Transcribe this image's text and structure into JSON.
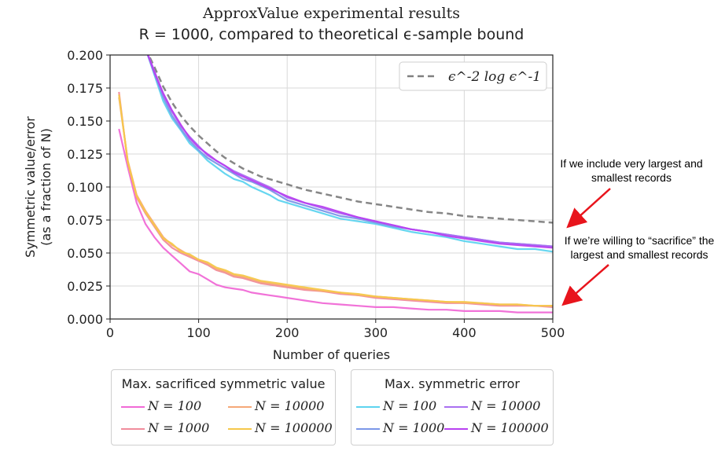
{
  "title": {
    "line1": "ApproxValue experimental results",
    "line2": "R = 1000, compared to theoretical ϵ-sample bound"
  },
  "annotations": {
    "upper": "If we include very largest and smallest records",
    "lower": "If we’re willing to “sacrifice” the largest and smallest records"
  },
  "legends": {
    "sacrificed": {
      "title": "Max. sacrificed symmetric value",
      "items": [
        "N = 100",
        "N = 10000",
        "N = 1000",
        "N = 100000"
      ]
    },
    "error": {
      "title": "Max. symmetric error",
      "items": [
        "N = 100",
        "N = 10000",
        "N = 1000",
        "N = 100000"
      ]
    }
  },
  "chart_data": {
    "type": "line",
    "xlabel": "Number of queries",
    "ylabel": "Symmetric value/error (as a fraction of N)",
    "xlim": [
      0,
      500
    ],
    "ylim": [
      0,
      0.2
    ],
    "xticks": [
      "0",
      "100",
      "200",
      "300",
      "400",
      "500"
    ],
    "yticks": [
      "0.000",
      "0.025",
      "0.050",
      "0.075",
      "0.100",
      "0.125",
      "0.150",
      "0.175",
      "0.200"
    ],
    "grid": true,
    "inline_legend": {
      "label": "ϵ^-2 log ϵ^-1",
      "position": "top-right"
    },
    "x": [
      10,
      20,
      30,
      40,
      50,
      60,
      70,
      80,
      90,
      100,
      110,
      120,
      130,
      140,
      150,
      160,
      170,
      180,
      190,
      200,
      220,
      240,
      260,
      280,
      300,
      320,
      340,
      360,
      380,
      400,
      420,
      440,
      460,
      480,
      500
    ],
    "series": [
      {
        "name": "ϵ^-2 log ϵ^-1",
        "group": "bound",
        "color": "#808080",
        "dashed": true,
        "values": [
          null,
          null,
          null,
          0.205,
          0.191,
          0.176,
          0.164,
          0.154,
          0.146,
          0.139,
          0.133,
          0.127,
          0.122,
          0.118,
          0.114,
          0.111,
          0.108,
          0.106,
          0.104,
          0.102,
          0.098,
          0.095,
          0.092,
          0.089,
          0.087,
          0.085,
          0.083,
          0.081,
          0.08,
          0.078,
          0.077,
          0.076,
          0.075,
          0.074,
          0.073
        ]
      },
      {
        "name": "N = 100",
        "group": "error",
        "color": "#5ed4ef",
        "values": [
          null,
          null,
          null,
          0.205,
          0.185,
          0.165,
          0.152,
          0.143,
          0.133,
          0.127,
          0.12,
          0.115,
          0.11,
          0.106,
          0.104,
          0.1,
          0.097,
          0.094,
          0.09,
          0.088,
          0.084,
          0.08,
          0.076,
          0.074,
          0.072,
          0.069,
          0.066,
          0.064,
          0.062,
          0.059,
          0.057,
          0.055,
          0.053,
          0.053,
          0.051
        ]
      },
      {
        "name": "N = 1000",
        "group": "error",
        "color": "#7c97e8",
        "values": [
          null,
          null,
          null,
          0.205,
          0.186,
          0.168,
          0.154,
          0.144,
          0.135,
          0.128,
          0.122,
          0.118,
          0.114,
          0.11,
          0.106,
          0.104,
          0.101,
          0.098,
          0.094,
          0.09,
          0.086,
          0.082,
          0.078,
          0.076,
          0.073,
          0.07,
          0.068,
          0.066,
          0.064,
          0.062,
          0.06,
          0.058,
          0.057,
          0.056,
          0.055
        ]
      },
      {
        "name": "N = 10000",
        "group": "error",
        "color": "#a96ff0",
        "values": [
          null,
          null,
          null,
          0.205,
          0.188,
          0.17,
          0.157,
          0.146,
          0.138,
          0.131,
          0.124,
          0.12,
          0.116,
          0.112,
          0.109,
          0.106,
          0.103,
          0.1,
          0.096,
          0.092,
          0.088,
          0.084,
          0.08,
          0.077,
          0.074,
          0.071,
          0.068,
          0.066,
          0.064,
          0.062,
          0.06,
          0.058,
          0.057,
          0.056,
          0.055
        ]
      },
      {
        "name": "N = 100000",
        "group": "error",
        "color": "#b840f0",
        "values": [
          null,
          null,
          null,
          0.205,
          0.187,
          0.171,
          0.158,
          0.147,
          0.137,
          0.13,
          0.125,
          0.12,
          0.116,
          0.111,
          0.108,
          0.105,
          0.102,
          0.099,
          0.096,
          0.093,
          0.088,
          0.085,
          0.081,
          0.077,
          0.074,
          0.071,
          0.068,
          0.066,
          0.063,
          0.061,
          0.059,
          0.057,
          0.056,
          0.055,
          0.054
        ]
      },
      {
        "name": "N = 100",
        "group": "sacrificed",
        "color": "#f06ad6",
        "values": [
          0.144,
          0.115,
          0.088,
          0.072,
          0.062,
          0.054,
          0.048,
          0.042,
          0.036,
          0.034,
          0.03,
          0.026,
          0.024,
          0.023,
          0.022,
          0.02,
          0.019,
          0.018,
          0.017,
          0.016,
          0.014,
          0.012,
          0.011,
          0.01,
          0.009,
          0.009,
          0.008,
          0.007,
          0.007,
          0.006,
          0.006,
          0.006,
          0.005,
          0.005,
          0.005
        ]
      },
      {
        "name": "N = 1000",
        "group": "sacrificed",
        "color": "#f08c9c",
        "values": [
          0.172,
          0.118,
          0.092,
          0.08,
          0.07,
          0.06,
          0.054,
          0.05,
          0.047,
          0.044,
          0.041,
          0.037,
          0.035,
          0.032,
          0.031,
          0.029,
          0.027,
          0.026,
          0.025,
          0.024,
          0.022,
          0.021,
          0.019,
          0.018,
          0.016,
          0.015,
          0.014,
          0.013,
          0.012,
          0.012,
          0.011,
          0.01,
          0.01,
          0.01,
          0.009
        ]
      },
      {
        "name": "N = 10000",
        "group": "sacrificed",
        "color": "#f5a878",
        "values": [
          0.168,
          0.12,
          0.094,
          0.082,
          0.072,
          0.062,
          0.056,
          0.052,
          0.048,
          0.045,
          0.042,
          0.038,
          0.036,
          0.033,
          0.032,
          0.03,
          0.028,
          0.027,
          0.026,
          0.025,
          0.023,
          0.021,
          0.02,
          0.018,
          0.017,
          0.016,
          0.015,
          0.014,
          0.013,
          0.012,
          0.012,
          0.011,
          0.011,
          0.01,
          0.01
        ]
      },
      {
        "name": "N = 100000",
        "group": "sacrificed",
        "color": "#f5c84a",
        "values": [
          0.17,
          0.119,
          0.093,
          0.081,
          0.071,
          0.061,
          0.057,
          0.051,
          0.049,
          0.045,
          0.043,
          0.039,
          0.037,
          0.034,
          0.033,
          0.031,
          0.029,
          0.028,
          0.027,
          0.026,
          0.024,
          0.022,
          0.02,
          0.019,
          0.017,
          0.016,
          0.015,
          0.014,
          0.013,
          0.013,
          0.012,
          0.011,
          0.011,
          0.01,
          0.01
        ]
      }
    ]
  }
}
